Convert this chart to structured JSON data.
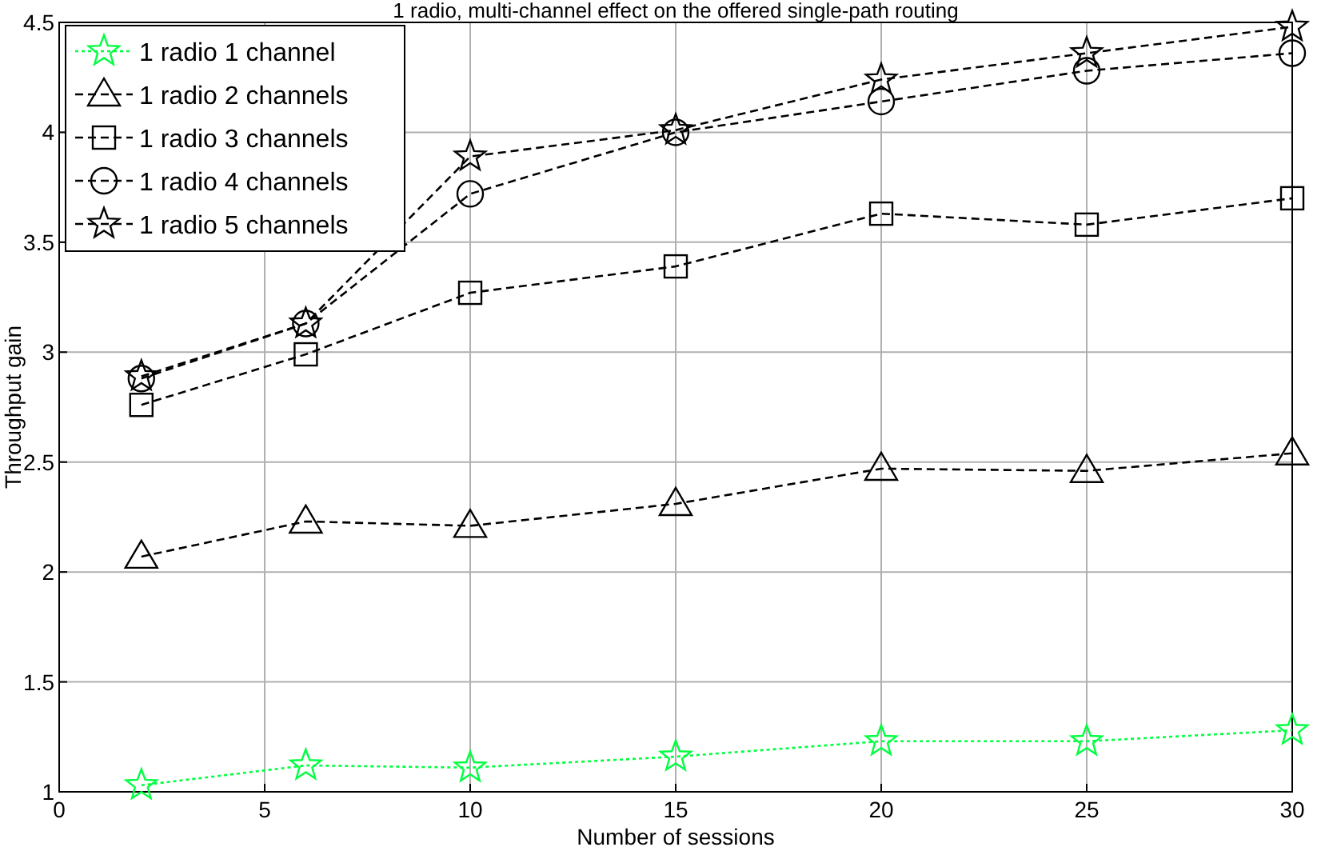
{
  "chart_data": {
    "type": "line",
    "title": "1 radio, multi-channel effect on the offered single-path routing",
    "xlabel": "Number of sessions",
    "ylabel": "Throughput gain",
    "x": [
      2,
      6,
      10,
      15,
      20,
      25,
      30
    ],
    "series": [
      {
        "name": "1 radio 1 channel",
        "color": "#00ff40",
        "marker": "star",
        "line_style": "dotted",
        "values": [
          1.03,
          1.12,
          1.11,
          1.16,
          1.23,
          1.23,
          1.28
        ]
      },
      {
        "name": "1 radio 2 channels",
        "color": "#000000",
        "marker": "triangle",
        "line_style": "dashed",
        "values": [
          2.07,
          2.23,
          2.21,
          2.31,
          2.47,
          2.46,
          2.54
        ]
      },
      {
        "name": "1 radio 3 channels",
        "color": "#000000",
        "marker": "square",
        "line_style": "dashed",
        "values": [
          2.76,
          2.99,
          3.27,
          3.39,
          3.63,
          3.58,
          3.7
        ]
      },
      {
        "name": "1 radio 4 channels",
        "color": "#000000",
        "marker": "circle",
        "line_style": "dashed",
        "values": [
          2.88,
          3.13,
          3.72,
          4.0,
          4.14,
          4.28,
          4.36
        ]
      },
      {
        "name": "1 radio 5 channels",
        "color": "#000000",
        "marker": "star",
        "line_style": "dashed",
        "values": [
          2.89,
          3.13,
          3.89,
          4.01,
          4.24,
          4.36,
          4.48
        ]
      }
    ],
    "xlim": [
      0,
      30
    ],
    "xticks": [
      0,
      5,
      10,
      15,
      20,
      25,
      30
    ],
    "ylim": [
      1,
      4.5
    ],
    "yticks": [
      1,
      1.5,
      2,
      2.5,
      3,
      3.5,
      4,
      4.5
    ],
    "grid": true,
    "legend": "top left"
  }
}
